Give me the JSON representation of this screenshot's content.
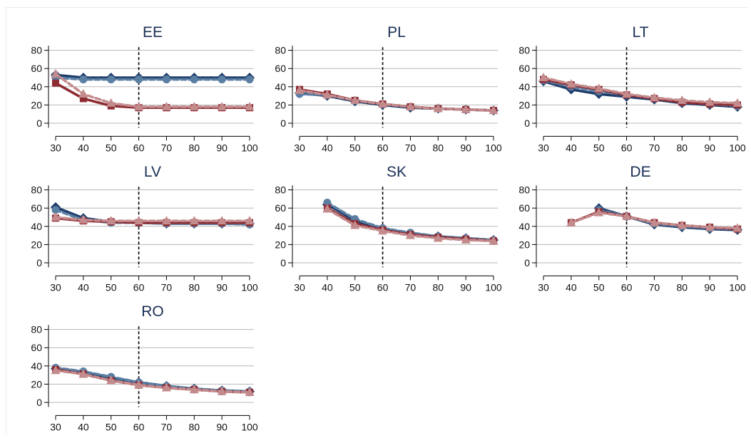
{
  "chart_data": [
    {
      "type": "line",
      "title": "EE",
      "x": [
        30,
        40,
        50,
        60,
        70,
        80,
        90,
        100
      ],
      "xticks": [
        "30",
        "40",
        "50",
        "60",
        "70",
        "80",
        "90",
        "100"
      ],
      "yticks": [
        "0",
        "20",
        "40",
        "60",
        "80"
      ],
      "ylim": [
        -5,
        85
      ],
      "vline": 60,
      "grid": true,
      "series": [
        {
          "values": [
            53,
            50,
            50,
            50,
            50,
            50,
            50,
            50
          ],
          "color": "#1f3d6b",
          "style": "solid",
          "marker": "diamond"
        },
        {
          "values": [
            50,
            48,
            48,
            48,
            48,
            48,
            48,
            48
          ],
          "color": "#5b7fa3",
          "style": "dashed",
          "marker": "circle"
        },
        {
          "values": [
            44,
            27,
            19,
            17,
            17,
            17,
            17,
            17
          ],
          "color": "#8e2c34",
          "style": "solid",
          "marker": "square"
        },
        {
          "values": [
            54,
            32,
            22,
            18,
            18,
            18,
            18,
            18
          ],
          "color": "#c48b8d",
          "style": "dashed",
          "marker": "triangle"
        }
      ]
    },
    {
      "type": "line",
      "title": "PL",
      "x": [
        30,
        40,
        50,
        60,
        70,
        80,
        90,
        100
      ],
      "xticks": [
        "30",
        "40",
        "50",
        "60",
        "70",
        "80",
        "90",
        "100"
      ],
      "yticks": [
        "0",
        "20",
        "40",
        "60",
        "80"
      ],
      "ylim": [
        -5,
        85
      ],
      "vline": 60,
      "grid": true,
      "series": [
        {
          "values": [
            33,
            30,
            24,
            20,
            17,
            16,
            15,
            14
          ],
          "color": "#1f3d6b",
          "style": "solid",
          "marker": "diamond"
        },
        {
          "values": [
            32,
            31,
            25,
            21,
            18,
            16,
            15,
            14
          ],
          "color": "#5b7fa3",
          "style": "dashed",
          "marker": "circle"
        },
        {
          "values": [
            37,
            32,
            25,
            21,
            18,
            16,
            15,
            14
          ],
          "color": "#8e2c34",
          "style": "solid",
          "marker": "square"
        },
        {
          "values": [
            36,
            31,
            25,
            21,
            18,
            16,
            15,
            14
          ],
          "color": "#c48b8d",
          "style": "dashed",
          "marker": "triangle"
        }
      ]
    },
    {
      "type": "line",
      "title": "LT",
      "x": [
        30,
        40,
        50,
        60,
        70,
        80,
        90,
        100
      ],
      "xticks": [
        "30",
        "40",
        "50",
        "60",
        "70",
        "80",
        "90",
        "100"
      ],
      "yticks": [
        "0",
        "20",
        "40",
        "60",
        "80"
      ],
      "ylim": [
        -5,
        85
      ],
      "vline": 60,
      "grid": true,
      "series": [
        {
          "values": [
            46,
            37,
            32,
            29,
            26,
            22,
            20,
            18
          ],
          "color": "#1f3d6b",
          "style": "solid",
          "marker": "diamond"
        },
        {
          "values": [
            47,
            40,
            35,
            31,
            27,
            23,
            21,
            19
          ],
          "color": "#5b7fa3",
          "style": "dashed",
          "marker": "circle"
        },
        {
          "values": [
            48,
            42,
            37,
            31,
            27,
            23,
            21,
            20
          ],
          "color": "#8e2c34",
          "style": "solid",
          "marker": "square"
        },
        {
          "values": [
            50,
            43,
            38,
            32,
            28,
            25,
            23,
            22
          ],
          "color": "#c48b8d",
          "style": "dashed",
          "marker": "triangle"
        }
      ]
    },
    {
      "type": "line",
      "title": "LV",
      "x": [
        30,
        40,
        50,
        60,
        70,
        80,
        90,
        100
      ],
      "xticks": [
        "30",
        "40",
        "50",
        "60",
        "70",
        "80",
        "90",
        "100"
      ],
      "yticks": [
        "0",
        "20",
        "40",
        "60",
        "80"
      ],
      "ylim": [
        -5,
        85
      ],
      "vline": 60,
      "grid": true,
      "series": [
        {
          "values": [
            61,
            49,
            45,
            44,
            43,
            43,
            43,
            43
          ],
          "color": "#1f3d6b",
          "style": "solid",
          "marker": "diamond"
        },
        {
          "values": [
            58,
            47,
            44,
            44,
            43,
            43,
            43,
            42
          ],
          "color": "#5b7fa3",
          "style": "dashed",
          "marker": "circle"
        },
        {
          "values": [
            49,
            46,
            45,
            44,
            44,
            44,
            44,
            44
          ],
          "color": "#8e2c34",
          "style": "solid",
          "marker": "square"
        },
        {
          "values": [
            50,
            47,
            46,
            46,
            46,
            46,
            46,
            46
          ],
          "color": "#c48b8d",
          "style": "dashed",
          "marker": "triangle"
        }
      ]
    },
    {
      "type": "line",
      "title": "SK",
      "x": [
        30,
        40,
        50,
        60,
        70,
        80,
        90,
        100
      ],
      "xticks": [
        "30",
        "40",
        "50",
        "60",
        "70",
        "80",
        "90",
        "100"
      ],
      "yticks": [
        "0",
        "20",
        "40",
        "60",
        "80"
      ],
      "ylim": [
        -5,
        85
      ],
      "vline": 60,
      "grid": true,
      "series": [
        {
          "values": [
            null,
            64,
            46,
            37,
            32,
            29,
            27,
            25
          ],
          "color": "#1f3d6b",
          "style": "solid",
          "marker": "diamond"
        },
        {
          "values": [
            null,
            66,
            48,
            38,
            33,
            29,
            27,
            25
          ],
          "color": "#5b7fa3",
          "style": "dashed",
          "marker": "circle"
        },
        {
          "values": [
            null,
            60,
            43,
            36,
            31,
            28,
            26,
            24
          ],
          "color": "#8e2c34",
          "style": "solid",
          "marker": "square"
        },
        {
          "values": [
            null,
            59,
            41,
            35,
            30,
            27,
            25,
            24
          ],
          "color": "#c48b8d",
          "style": "dashed",
          "marker": "triangle"
        }
      ]
    },
    {
      "type": "line",
      "title": "DE",
      "x": [
        30,
        40,
        50,
        60,
        70,
        80,
        90,
        100
      ],
      "xticks": [
        "30",
        "40",
        "50",
        "60",
        "70",
        "80",
        "90",
        "100"
      ],
      "yticks": [
        "0",
        "20",
        "40",
        "60",
        "80"
      ],
      "ylim": [
        -5,
        85
      ],
      "vline": 60,
      "grid": true,
      "series": [
        {
          "values": [
            null,
            null,
            60,
            51,
            42,
            39,
            37,
            36
          ],
          "color": "#1f3d6b",
          "style": "solid",
          "marker": "diamond"
        },
        {
          "values": [
            null,
            null,
            58,
            51,
            43,
            40,
            38,
            37
          ],
          "color": "#5b7fa3",
          "style": "dashed",
          "marker": "circle"
        },
        {
          "values": [
            null,
            44,
            56,
            51,
            44,
            41,
            39,
            37
          ],
          "color": "#8e2c34",
          "style": "solid",
          "marker": "square"
        },
        {
          "values": [
            null,
            44,
            55,
            51,
            44,
            41,
            39,
            38
          ],
          "color": "#c48b8d",
          "style": "dashed",
          "marker": "triangle"
        }
      ]
    },
    {
      "type": "line",
      "title": "RO",
      "x": [
        30,
        40,
        50,
        60,
        70,
        80,
        90,
        100
      ],
      "xticks": [
        "30",
        "40",
        "50",
        "60",
        "70",
        "80",
        "90",
        "100"
      ],
      "yticks": [
        "0",
        "20",
        "40",
        "60",
        "80"
      ],
      "ylim": [
        -5,
        85
      ],
      "vline": 60,
      "grid": true,
      "series": [
        {
          "values": [
            37,
            33,
            27,
            22,
            18,
            15,
            13,
            12
          ],
          "color": "#1f3d6b",
          "style": "solid",
          "marker": "diamond"
        },
        {
          "values": [
            38,
            34,
            28,
            22,
            18,
            15,
            13,
            12
          ],
          "color": "#5b7fa3",
          "style": "dashed",
          "marker": "circle"
        },
        {
          "values": [
            36,
            31,
            24,
            19,
            16,
            14,
            12,
            11
          ],
          "color": "#8e2c34",
          "style": "solid",
          "marker": "square"
        },
        {
          "values": [
            35,
            31,
            24,
            19,
            16,
            14,
            12,
            11
          ],
          "color": "#c48b8d",
          "style": "dashed",
          "marker": "triangle"
        }
      ]
    }
  ]
}
